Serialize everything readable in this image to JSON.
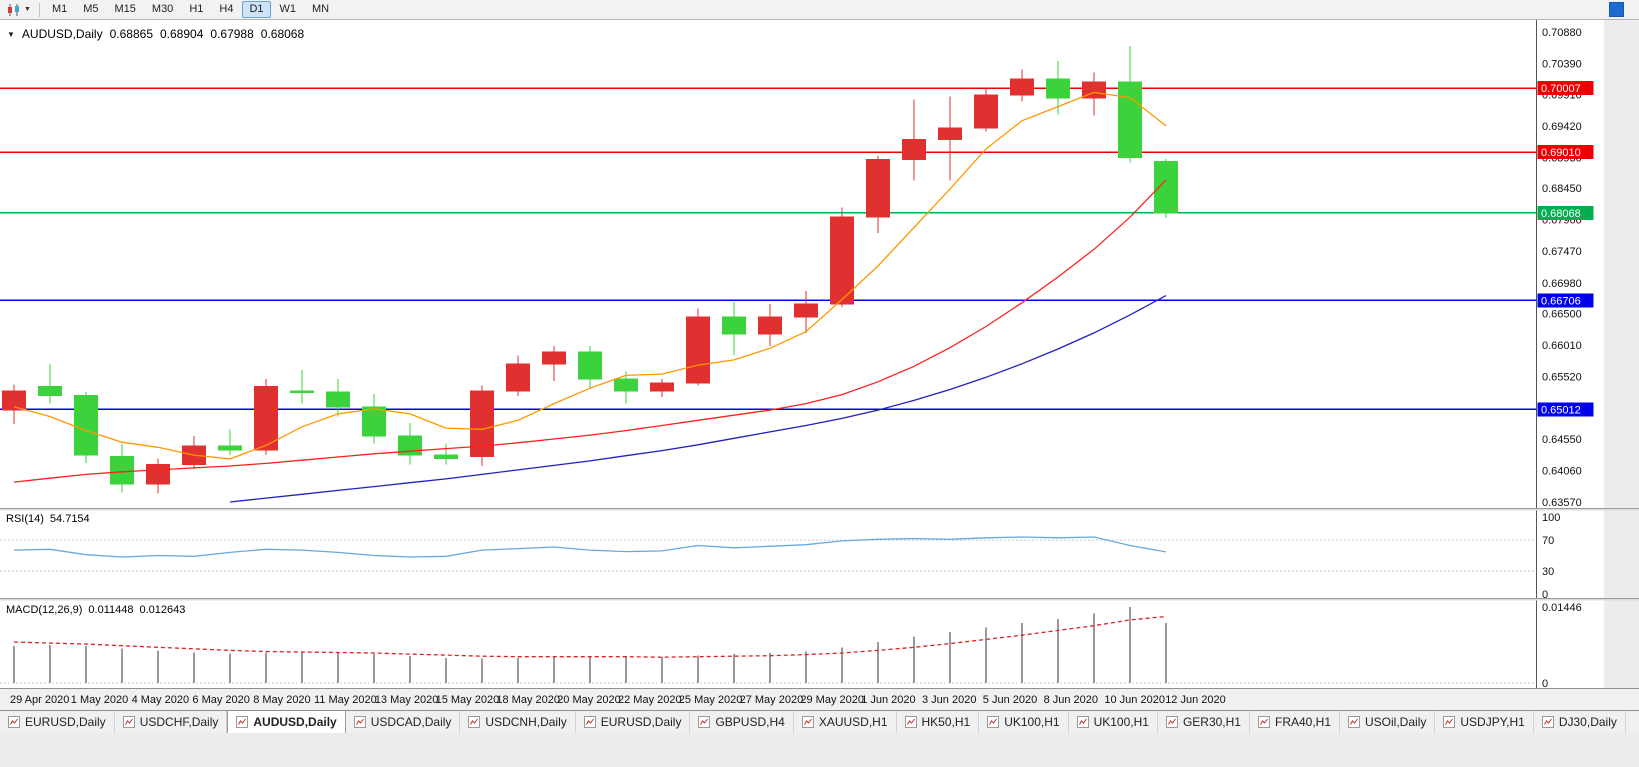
{
  "window": {
    "toolbar": {
      "chart_type_icon": "candlestick-chart-icon",
      "dropdown_icon": "chevron-down-icon",
      "timeframes": [
        "M1",
        "M5",
        "M15",
        "M30",
        "H1",
        "H4",
        "D1",
        "W1",
        "MN"
      ],
      "active_timeframe": "D1",
      "right_button_color": "#1d6bd2"
    },
    "tabs": [
      {
        "label": "EURUSD,Daily",
        "active": false
      },
      {
        "label": "USDCHF,Daily",
        "active": false
      },
      {
        "label": "AUDUSD,Daily",
        "active": true
      },
      {
        "label": "USDCAD,Daily",
        "active": false
      },
      {
        "label": "USDCNH,Daily",
        "active": false
      },
      {
        "label": "EURUSD,Daily",
        "active": false
      },
      {
        "label": "GBPUSD,H4",
        "active": false
      },
      {
        "label": "XAUUSD,H1",
        "active": false
      },
      {
        "label": "HK50,H1",
        "active": false
      },
      {
        "label": "UK100,H1",
        "active": false
      },
      {
        "label": "UK100,H1",
        "active": false
      },
      {
        "label": "GER30,H1",
        "active": false
      },
      {
        "label": "FRA40,H1",
        "active": false
      },
      {
        "label": "USOil,Daily",
        "active": false
      },
      {
        "label": "USDJPY,H1",
        "active": false
      },
      {
        "label": "DJ30,Daily",
        "active": false
      }
    ]
  },
  "chart_data": {
    "type": "candlestick",
    "symbol": "AUDUSD",
    "period": "Daily",
    "header": {
      "symbol": "AUDUSD,Daily",
      "open": "0.68865",
      "high": "0.68904",
      "low": "0.67988",
      "close": "0.68068"
    },
    "colors": {
      "bull": "#e03030",
      "bear": "#3bd23b",
      "ma_fast": "#ff9800",
      "ma_mid": "#ff2020",
      "ma_slow": "#2020c0",
      "rsi": "#6aa9dc",
      "rsi_level": "#c8c8c8",
      "macd_hist": "#9a9a9a",
      "macd_signal": "#e02020",
      "tag_red": "#ee0000",
      "tag_green": "#00b050",
      "tag_blue": "#0000ee"
    },
    "price_axis": {
      "max": 0.7088,
      "min": 0.6357,
      "labels": [
        "0.70880",
        "0.70390",
        "0.69910",
        "0.69420",
        "0.68930",
        "0.68450",
        "0.67960",
        "0.67470",
        "0.66980",
        "0.66500",
        "0.66010",
        "0.65520",
        "0.65030",
        "0.64550",
        "0.64060",
        "0.63570"
      ]
    },
    "h_lines": [
      {
        "price": 0.70007,
        "label": "0.70007",
        "color": "#ee0000"
      },
      {
        "price": 0.6901,
        "label": "0.69010",
        "color": "#ee0000"
      },
      {
        "price": 0.68068,
        "label": "0.68068",
        "color": "#00b050"
      },
      {
        "price": 0.66706,
        "label": "0.66706",
        "color": "#0000ee"
      },
      {
        "price": 0.65012,
        "label": "0.65012",
        "color": "#0000ee"
      }
    ],
    "candles": [
      {
        "date": "29 Apr 2020",
        "o": 0.65,
        "h": 0.654,
        "l": 0.6478,
        "c": 0.653
      },
      {
        "date": "30 Apr 2020",
        "o": 0.6537,
        "h": 0.6572,
        "l": 0.651,
        "c": 0.6523
      },
      {
        "date": "1 May 2020",
        "o": 0.6523,
        "h": 0.6528,
        "l": 0.6418,
        "c": 0.643
      },
      {
        "date": "4 May 2020",
        "o": 0.6428,
        "h": 0.6448,
        "l": 0.6372,
        "c": 0.6385
      },
      {
        "date": "5 May 2020",
        "o": 0.6385,
        "h": 0.6425,
        "l": 0.637,
        "c": 0.6415
      },
      {
        "date": "6 May 2020",
        "o": 0.6415,
        "h": 0.646,
        "l": 0.6408,
        "c": 0.6444
      },
      {
        "date": "7 May 2020",
        "o": 0.6444,
        "h": 0.647,
        "l": 0.643,
        "c": 0.6438
      },
      {
        "date": "8 May 2020",
        "o": 0.6438,
        "h": 0.6548,
        "l": 0.643,
        "c": 0.6537
      },
      {
        "date": "11 May 2020",
        "o": 0.653,
        "h": 0.6562,
        "l": 0.651,
        "c": 0.6528
      },
      {
        "date": "12 May 2020",
        "o": 0.6528,
        "h": 0.6548,
        "l": 0.649,
        "c": 0.6505
      },
      {
        "date": "13 May 2020",
        "o": 0.6505,
        "h": 0.6525,
        "l": 0.6448,
        "c": 0.646
      },
      {
        "date": "14 May 2020",
        "o": 0.646,
        "h": 0.648,
        "l": 0.6415,
        "c": 0.643
      },
      {
        "date": "15 May 2020",
        "o": 0.643,
        "h": 0.6448,
        "l": 0.6415,
        "c": 0.6425
      },
      {
        "date": "18 May 2020",
        "o": 0.6428,
        "h": 0.6538,
        "l": 0.6413,
        "c": 0.653
      },
      {
        "date": "19 May 2020",
        "o": 0.653,
        "h": 0.6585,
        "l": 0.6522,
        "c": 0.6572
      },
      {
        "date": "20 May 2020",
        "o": 0.6572,
        "h": 0.66,
        "l": 0.6545,
        "c": 0.659
      },
      {
        "date": "21 May 2020",
        "o": 0.659,
        "h": 0.66,
        "l": 0.6535,
        "c": 0.6548
      },
      {
        "date": "22 May 2020",
        "o": 0.6548,
        "h": 0.656,
        "l": 0.651,
        "c": 0.653
      },
      {
        "date": "25 May 2020",
        "o": 0.653,
        "h": 0.6548,
        "l": 0.652,
        "c": 0.6542
      },
      {
        "date": "26 May 2020",
        "o": 0.6542,
        "h": 0.6658,
        "l": 0.6538,
        "c": 0.6645
      },
      {
        "date": "27 May 2020",
        "o": 0.6645,
        "h": 0.6668,
        "l": 0.6586,
        "c": 0.6618
      },
      {
        "date": "28 May 2020",
        "o": 0.6618,
        "h": 0.6665,
        "l": 0.66,
        "c": 0.6645
      },
      {
        "date": "29 May 2020",
        "o": 0.6645,
        "h": 0.6685,
        "l": 0.662,
        "c": 0.6665
      },
      {
        "date": "1 Jun 2020",
        "o": 0.6665,
        "h": 0.6815,
        "l": 0.666,
        "c": 0.68
      },
      {
        "date": "2 Jun 2020",
        "o": 0.68,
        "h": 0.6895,
        "l": 0.6775,
        "c": 0.689
      },
      {
        "date": "3 Jun 2020",
        "o": 0.689,
        "h": 0.6983,
        "l": 0.6857,
        "c": 0.6921
      },
      {
        "date": "4 Jun 2020",
        "o": 0.6921,
        "h": 0.6988,
        "l": 0.6857,
        "c": 0.6939
      },
      {
        "date": "5 Jun 2020",
        "o": 0.6939,
        "h": 0.7,
        "l": 0.6933,
        "c": 0.699
      },
      {
        "date": "8 Jun 2020",
        "o": 0.699,
        "h": 0.703,
        "l": 0.698,
        "c": 0.7015
      },
      {
        "date": "9 Jun 2020",
        "o": 0.7015,
        "h": 0.7043,
        "l": 0.696,
        "c": 0.6985
      },
      {
        "date": "10 Jun 2020",
        "o": 0.6985,
        "h": 0.7025,
        "l": 0.6958,
        "c": 0.701
      },
      {
        "date": "11 Jun 2020",
        "o": 0.701,
        "h": 0.7066,
        "l": 0.6885,
        "c": 0.6893
      },
      {
        "date": "12 Jun 2020",
        "o": 0.68865,
        "h": 0.68904,
        "l": 0.67988,
        "c": 0.68068
      }
    ],
    "ma_lines": [
      {
        "name": "ma-fast",
        "color": "#ff9800",
        "values": [
          0.6505,
          0.649,
          0.6468,
          0.645,
          0.6442,
          0.643,
          0.6424,
          0.6445,
          0.6474,
          0.6494,
          0.6502,
          0.6494,
          0.6472,
          0.647,
          0.6484,
          0.651,
          0.6534,
          0.6554,
          0.6556,
          0.657,
          0.6578,
          0.6596,
          0.6622,
          0.6672,
          0.6724,
          0.6784,
          0.6844,
          0.6906,
          0.695,
          0.6972,
          0.6994,
          0.6986,
          0.6942
        ]
      },
      {
        "name": "ma-mid",
        "color": "#ff2020",
        "values": [
          0.6388,
          0.6394,
          0.64,
          0.6404,
          0.6407,
          0.641,
          0.6413,
          0.6417,
          0.6422,
          0.6427,
          0.6432,
          0.6436,
          0.644,
          0.6444,
          0.6449,
          0.6455,
          0.6461,
          0.6468,
          0.6476,
          0.6484,
          0.6492,
          0.65,
          0.651,
          0.6524,
          0.6544,
          0.6568,
          0.6597,
          0.663,
          0.6667,
          0.6707,
          0.675,
          0.68,
          0.6858
        ]
      },
      {
        "name": "ma-slow",
        "color": "#2020c0",
        "values": [
          null,
          null,
          null,
          null,
          null,
          null,
          0.6357,
          0.6363,
          0.6369,
          0.6375,
          0.6381,
          0.6387,
          0.6393,
          0.64,
          0.6407,
          0.6414,
          0.6421,
          0.6429,
          0.6437,
          0.6446,
          0.6456,
          0.6466,
          0.6476,
          0.6487,
          0.65,
          0.6515,
          0.6532,
          0.6551,
          0.6572,
          0.6595,
          0.662,
          0.6648,
          0.6678
        ]
      }
    ],
    "date_labels": [
      {
        "label": "29 Apr 2020",
        "bar": 0
      },
      {
        "label": "1 May 2020",
        "bar": 2
      },
      {
        "label": "4 May 2020",
        "bar": 3
      },
      {
        "label": "6 May 2020",
        "bar": 5
      },
      {
        "label": "8 May 2020",
        "bar": 7
      },
      {
        "label": "11 May 2020",
        "bar": 8
      },
      {
        "label": "13 May 2020",
        "bar": 10
      },
      {
        "label": "15 May 2020",
        "bar": 12
      },
      {
        "label": "18 May 2020",
        "bar": 13
      },
      {
        "label": "20 May 2020",
        "bar": 15
      },
      {
        "label": "22 May 2020",
        "bar": 17
      },
      {
        "label": "25 May 2020",
        "bar": 18
      },
      {
        "label": "27 May 2020",
        "bar": 20
      },
      {
        "label": "29 May 2020",
        "bar": 22
      },
      {
        "label": "1 Jun 2020",
        "bar": 23
      },
      {
        "label": "3 Jun 2020",
        "bar": 25
      },
      {
        "label": "5 Jun 2020",
        "bar": 27
      },
      {
        "label": "8 Jun 2020",
        "bar": 28
      },
      {
        "label": "10 Jun 2020",
        "bar": 30
      },
      {
        "label": "12 Jun 2020",
        "bar": 32
      }
    ],
    "rsi": {
      "name": "RSI(14)",
      "value": "54.7154",
      "levels": [
        100,
        70,
        30,
        0
      ],
      "dashed_levels": [
        70,
        30
      ],
      "series": [
        57,
        58,
        51,
        48,
        50,
        49,
        54,
        58,
        57,
        54,
        50,
        48,
        49,
        57,
        59,
        61,
        57,
        55,
        56,
        63,
        60,
        62,
        64,
        69,
        71,
        72,
        71,
        73,
        74,
        73,
        74,
        63,
        54.72
      ]
    },
    "macd": {
      "name": "MACD(12,26,9)",
      "main": "0.011448",
      "signal_value": "0.012643",
      "scale_max": "0.01446",
      "scale_zero": "0",
      "histogram": [
        0.007,
        0.0072,
        0.007,
        0.0066,
        0.0062,
        0.0058,
        0.0056,
        0.0058,
        0.006,
        0.0058,
        0.0055,
        0.0051,
        0.0048,
        0.0047,
        0.0048,
        0.005,
        0.0051,
        0.005,
        0.0049,
        0.0052,
        0.0055,
        0.0057,
        0.006,
        0.0068,
        0.0078,
        0.0088,
        0.0097,
        0.0106,
        0.0114,
        0.0122,
        0.0132,
        0.01446,
        0.011448
      ],
      "signal": [
        0.0078,
        0.0076,
        0.0074,
        0.0071,
        0.0068,
        0.0065,
        0.0062,
        0.006,
        0.0059,
        0.0058,
        0.0057,
        0.0055,
        0.0053,
        0.0051,
        0.005,
        0.005,
        0.005,
        0.005,
        0.0049,
        0.005,
        0.0051,
        0.0052,
        0.0054,
        0.0057,
        0.0062,
        0.0068,
        0.0075,
        0.0083,
        0.0091,
        0.01,
        0.0109,
        0.012,
        0.012643
      ]
    }
  }
}
